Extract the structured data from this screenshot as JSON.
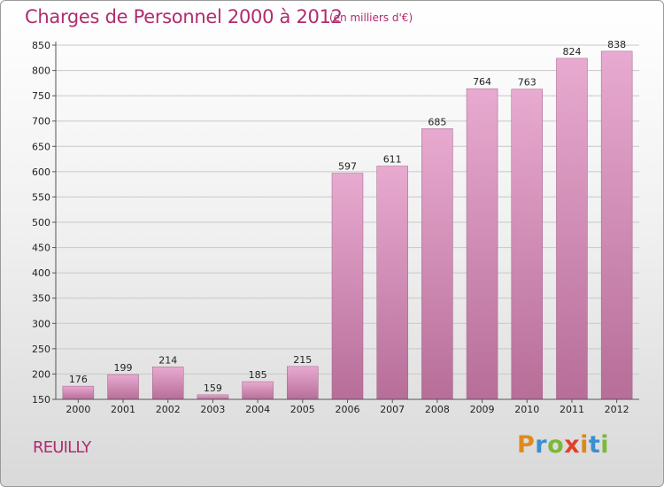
{
  "title": "Charges de Personnel 2000 à 2012",
  "subtitle": "(en milliers d'€)",
  "commune": "REUILLY",
  "logo": {
    "letters": [
      "P",
      "r",
      "o",
      "x",
      "i",
      "t",
      "i"
    ],
    "colors": [
      "#e08a1e",
      "#3a8fd0",
      "#7cb83a",
      "#e0402a",
      "#d98a1c",
      "#3a8fd0",
      "#7cb83a"
    ]
  },
  "colors": {
    "bar_light": "#e8aad0",
    "bar_dark": "#b76e98",
    "title": "#b02c6e"
  },
  "chart_data": {
    "type": "bar",
    "title": "Charges de Personnel 2000 à 2012",
    "subtitle": "(en milliers d'€)",
    "categories": [
      "2000",
      "2001",
      "2002",
      "2003",
      "2004",
      "2005",
      "2006",
      "2007",
      "2008",
      "2009",
      "2010",
      "2011",
      "2012"
    ],
    "values": [
      176,
      199,
      214,
      159,
      185,
      215,
      597,
      611,
      685,
      764,
      763,
      824,
      838
    ],
    "ylim": [
      150,
      850
    ],
    "yticks": [
      150,
      200,
      250,
      300,
      350,
      400,
      450,
      500,
      550,
      600,
      650,
      700,
      750,
      800,
      850
    ],
    "grid": true,
    "legend": "none"
  }
}
